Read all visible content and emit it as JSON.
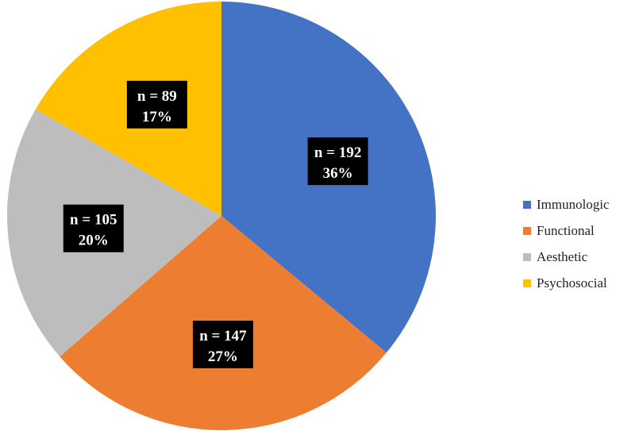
{
  "chart_data": {
    "type": "pie",
    "title": "",
    "start_angle_deg": 0,
    "direction": "clockwise",
    "legend_position": "right",
    "slices": [
      {
        "name": "Immunologic",
        "n": 192,
        "n_label": "n = 192",
        "percent_label": "36%",
        "color": "#4472C4"
      },
      {
        "name": "Functional",
        "n": 147,
        "n_label": "n = 147",
        "percent_label": "27%",
        "color": "#ED7D31"
      },
      {
        "name": "Aesthetic",
        "n": 105,
        "n_label": "n = 105",
        "percent_label": "20%",
        "color": "#BDBDBD"
      },
      {
        "name": "Psychosocial",
        "n": 89,
        "n_label": "n = 89",
        "percent_label": "17%",
        "color": "#FFC000"
      }
    ]
  }
}
